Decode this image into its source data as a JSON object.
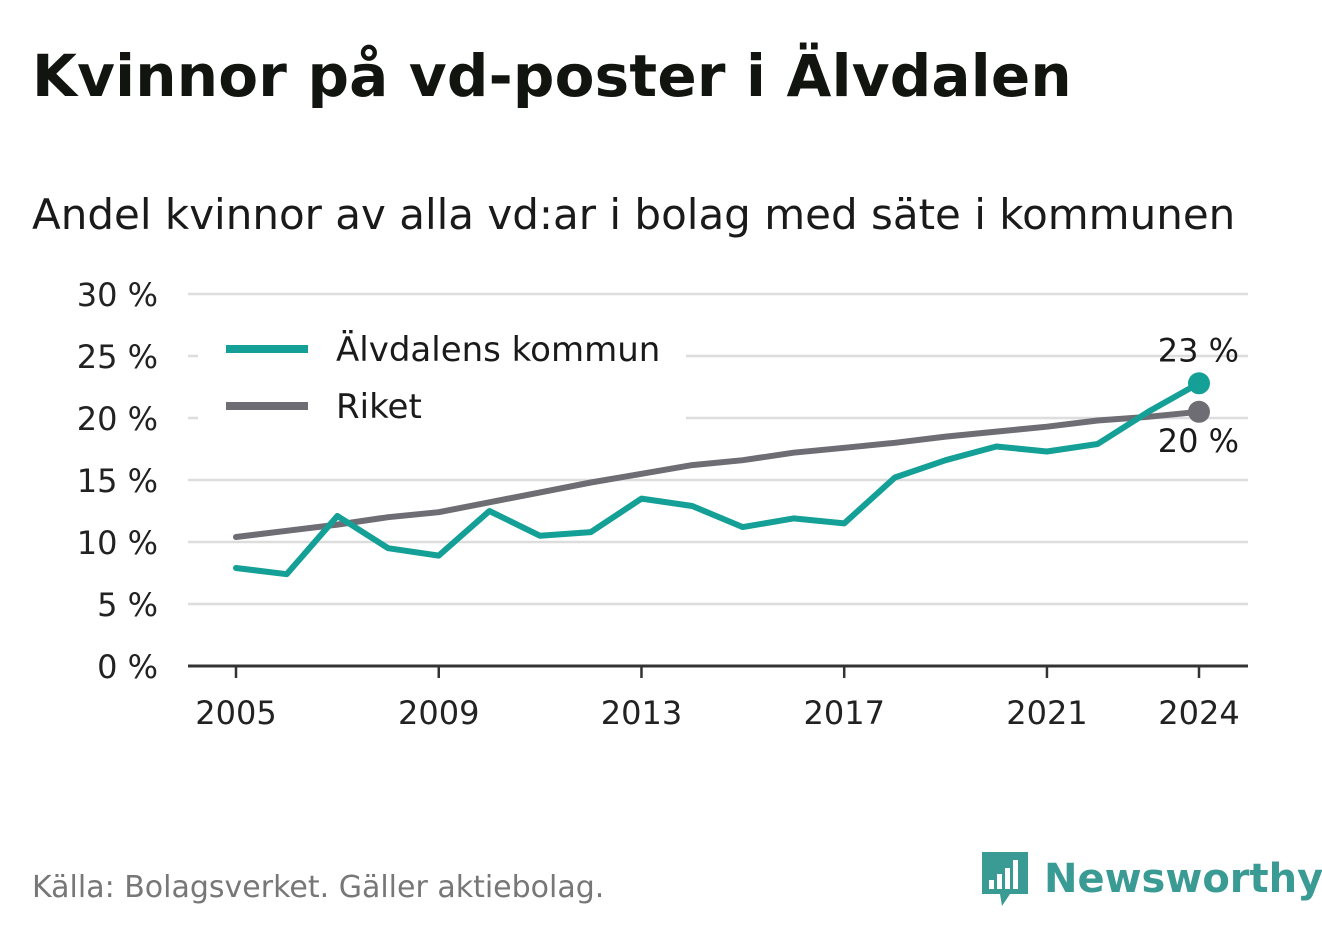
{
  "header": {
    "title": "Kvinnor på vd-poster i Älvdalen",
    "subtitle": "Andel kvinnor av alla vd:ar i bolag med säte i kommunen"
  },
  "footer": {
    "source": "Källa: Bolagsverket. Gäller aktiebolag.",
    "brand": "Newsworthy",
    "brand_icon": "bar-chart-speech-bubble-icon"
  },
  "colors": {
    "municipality": "#14a096",
    "country": "#6e6d74",
    "grid": "#dddddd",
    "axis": "#333333",
    "brand": "#3a9a94"
  },
  "chart_data": {
    "type": "line",
    "x": [
      2005,
      2006,
      2007,
      2008,
      2009,
      2010,
      2011,
      2012,
      2013,
      2014,
      2015,
      2016,
      2017,
      2018,
      2019,
      2020,
      2021,
      2022,
      2023,
      2024
    ],
    "x_ticks": [
      2005,
      2009,
      2013,
      2017,
      2021,
      2024
    ],
    "x_tick_labels": [
      "2005",
      "2009",
      "2013",
      "2017",
      "2021",
      "2024"
    ],
    "y_ticks": [
      0,
      5,
      10,
      15,
      20,
      25,
      30
    ],
    "y_tick_labels": [
      "0 %",
      "5 %",
      "10 %",
      "15 %",
      "20 %",
      "25 %",
      "30 %"
    ],
    "ylim": [
      0,
      30
    ],
    "grid": true,
    "legend_position": "top-left",
    "series": [
      {
        "name": "Älvdalens kommun",
        "color": "#14a096",
        "values": [
          7.9,
          7.4,
          12.1,
          9.5,
          8.9,
          12.5,
          10.5,
          10.8,
          13.5,
          12.9,
          11.2,
          11.9,
          11.5,
          15.2,
          16.6,
          17.7,
          17.3,
          17.9,
          20.5,
          22.8
        ],
        "end_label": "23 %"
      },
      {
        "name": "Riket",
        "color": "#6e6d74",
        "values": [
          10.4,
          10.9,
          11.4,
          12.0,
          12.4,
          13.2,
          14.0,
          14.8,
          15.5,
          16.2,
          16.6,
          17.2,
          17.6,
          18.0,
          18.5,
          18.9,
          19.3,
          19.8,
          20.1,
          20.5
        ],
        "end_label": "20 %"
      }
    ]
  }
}
